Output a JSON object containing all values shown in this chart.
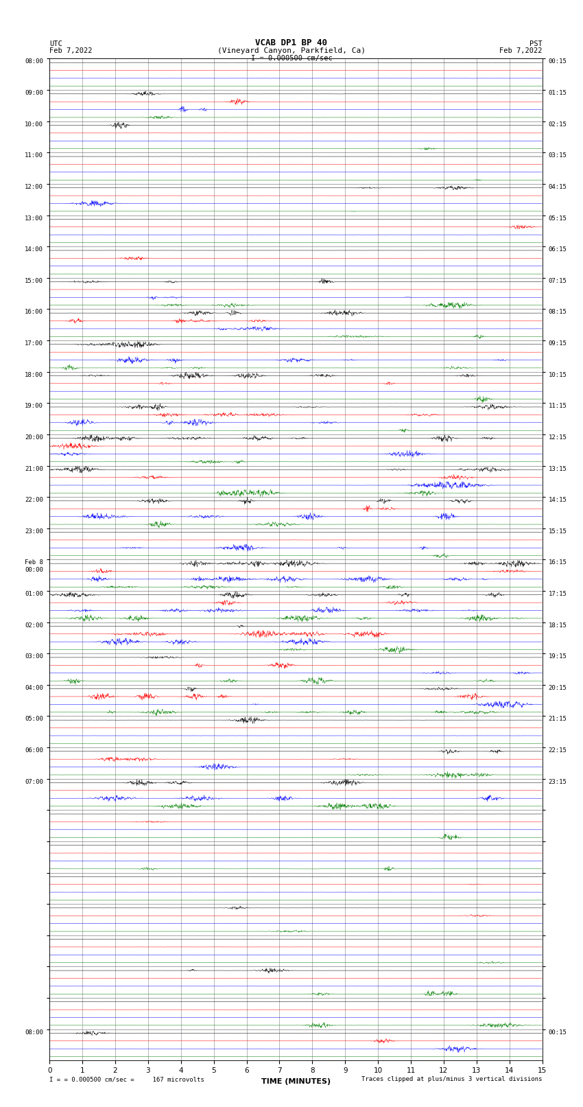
{
  "title_line1": "VCAB DP1 BP 40",
  "title_line2": "(Vineyard Canyon, Parkfield, Ca)",
  "title_line3": "I = 0.000500 cm/sec",
  "left_header_line1": "UTC",
  "left_header_line2": "Feb 7,2022",
  "right_header_line1": "PST",
  "right_header_line2": "Feb 7,2022",
  "xlabel": "TIME (MINUTES)",
  "footer_left": "= 0.000500 cm/sec =     167 microvolts",
  "footer_right": "Traces clipped at plus/minus 3 vertical divisions",
  "footer_scale_marker": "I",
  "xlim": [
    0,
    15
  ],
  "xticks": [
    0,
    1,
    2,
    3,
    4,
    5,
    6,
    7,
    8,
    9,
    10,
    11,
    12,
    13,
    14,
    15
  ],
  "num_rows": 32,
  "channels_per_row": 4,
  "channel_colors": [
    "black",
    "red",
    "blue",
    "green"
  ],
  "utc_labels": [
    "08:00",
    "09:00",
    "10:00",
    "11:00",
    "12:00",
    "13:00",
    "14:00",
    "15:00",
    "16:00",
    "17:00",
    "18:00",
    "19:00",
    "20:00",
    "21:00",
    "22:00",
    "23:00",
    "Feb 8\n00:00",
    "01:00",
    "02:00",
    "03:00",
    "04:00",
    "05:00",
    "06:00",
    "07:00",
    "",
    "",
    "",
    "",
    "",
    "",
    "",
    "08:00"
  ],
  "pst_labels": [
    "00:15",
    "01:15",
    "02:15",
    "03:15",
    "04:15",
    "05:15",
    "06:15",
    "07:15",
    "08:15",
    "09:15",
    "10:15",
    "11:15",
    "12:15",
    "13:15",
    "14:15",
    "15:15",
    "16:15",
    "17:15",
    "18:15",
    "19:15",
    "20:15",
    "21:15",
    "22:15",
    "23:15",
    "",
    "",
    "",
    "",
    "",
    "",
    "",
    "00:15"
  ],
  "bg_color": "#ffffff",
  "plot_bg_color": "#ffffff",
  "grid_color": "#808080",
  "noise_seed": 12345
}
